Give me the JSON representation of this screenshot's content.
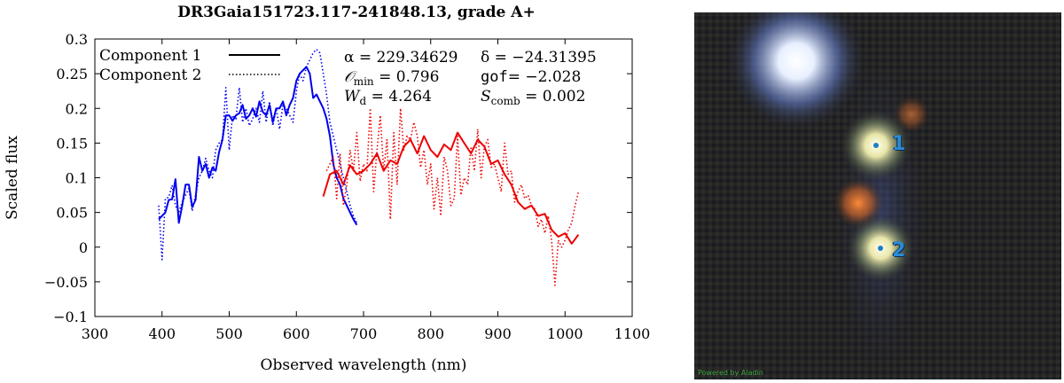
{
  "chart_data": {
    "type": "line",
    "title": "DR3Gaia151723.117-241848.13, grade A+",
    "xlabel": "Observed wavelength (nm)",
    "ylabel": "Scaled flux",
    "xlim": [
      300,
      1100
    ],
    "ylim": [
      -0.1,
      0.3
    ],
    "xticks": [
      "300",
      "400",
      "500",
      "600",
      "700",
      "800",
      "900",
      "1000",
      "1100"
    ],
    "yticks": [
      "−0.1",
      "−0.05",
      "0",
      "0.05",
      "0.1",
      "0.15",
      "0.2",
      "0.25",
      "0.3"
    ],
    "legend": {
      "placement": "top-left",
      "entries": [
        {
          "label": "Component 1",
          "style": "solid"
        },
        {
          "label": "Component 2",
          "style": "dotted"
        }
      ]
    },
    "annotations": [
      {
        "id": "alpha",
        "text": "α = 229.34629"
      },
      {
        "id": "delta",
        "text": "δ = −24.31395"
      },
      {
        "id": "omin",
        "text": "𝒪",
        "sub": "min",
        "rest": " = 0.796"
      },
      {
        "id": "gof",
        "text": "gof",
        "rest": "= −2.028"
      },
      {
        "id": "wd",
        "text": "W",
        "sub": "d",
        "rest": " = 4.264"
      },
      {
        "id": "scomb",
        "text": "S",
        "sub": "comb",
        "rest": " = 0.002"
      }
    ],
    "colors": {
      "bp": "#0000ee",
      "rp": "#ee0000"
    },
    "series": [
      {
        "component": 1,
        "band": "bp",
        "style": "solid",
        "x": [
          395,
          400,
          405,
          410,
          415,
          420,
          425,
          430,
          435,
          440,
          445,
          450,
          455,
          460,
          465,
          470,
          475,
          480,
          485,
          490,
          495,
          500,
          505,
          510,
          515,
          520,
          525,
          530,
          535,
          540,
          545,
          550,
          555,
          560,
          565,
          570,
          575,
          580,
          585,
          590,
          595,
          600,
          605,
          610,
          615,
          620,
          625,
          630,
          635,
          640,
          645,
          650,
          655,
          660,
          665,
          670,
          675,
          680,
          685,
          690
        ],
        "y": [
          0.04,
          0.045,
          0.05,
          0.068,
          0.069,
          0.098,
          0.035,
          0.06,
          0.09,
          0.09,
          0.058,
          0.068,
          0.13,
          0.11,
          0.12,
          0.1,
          0.115,
          0.11,
          0.137,
          0.155,
          0.19,
          0.19,
          0.182,
          0.19,
          0.193,
          0.205,
          0.185,
          0.19,
          0.2,
          0.188,
          0.21,
          0.195,
          0.19,
          0.205,
          0.18,
          0.2,
          0.2,
          0.21,
          0.19,
          0.205,
          0.215,
          0.24,
          0.25,
          0.255,
          0.26,
          0.25,
          0.215,
          0.22,
          0.21,
          0.2,
          0.185,
          0.16,
          0.12,
          0.1,
          0.09,
          0.07,
          0.06,
          0.05,
          0.04,
          0.032
        ]
      },
      {
        "component": 1,
        "band": "rp",
        "style": "solid",
        "x": [
          640,
          650,
          660,
          670,
          680,
          690,
          700,
          710,
          720,
          730,
          740,
          750,
          760,
          770,
          780,
          790,
          800,
          810,
          820,
          830,
          840,
          850,
          860,
          870,
          880,
          890,
          900,
          910,
          920,
          930,
          940,
          950,
          960,
          970,
          980,
          990,
          1000,
          1010,
          1020
        ],
        "y": [
          0.073,
          0.105,
          0.11,
          0.09,
          0.118,
          0.105,
          0.11,
          0.12,
          0.135,
          0.11,
          0.125,
          0.12,
          0.145,
          0.155,
          0.135,
          0.16,
          0.14,
          0.13,
          0.148,
          0.14,
          0.165,
          0.15,
          0.135,
          0.155,
          0.145,
          0.12,
          0.125,
          0.105,
          0.09,
          0.065,
          0.055,
          0.06,
          0.045,
          0.048,
          0.025,
          0.015,
          0.02,
          0.005,
          0.018
        ]
      },
      {
        "component": 2,
        "band": "bp",
        "style": "dotted",
        "x": [
          395,
          400,
          405,
          410,
          415,
          420,
          425,
          430,
          435,
          440,
          445,
          450,
          455,
          460,
          465,
          470,
          475,
          480,
          485,
          490,
          495,
          500,
          505,
          510,
          515,
          520,
          525,
          530,
          535,
          540,
          545,
          550,
          555,
          560,
          565,
          570,
          575,
          580,
          585,
          590,
          595,
          600,
          605,
          610,
          615,
          620,
          625,
          630,
          635,
          640,
          645,
          650,
          655,
          660,
          665,
          670,
          675,
          680,
          685,
          690
        ],
        "y": [
          0.06,
          -0.018,
          0.07,
          0.072,
          0.089,
          0.06,
          0.05,
          0.065,
          0.075,
          0.085,
          0.052,
          0.075,
          0.1,
          0.11,
          0.128,
          0.11,
          0.1,
          0.14,
          0.15,
          0.155,
          0.23,
          0.14,
          0.19,
          0.185,
          0.23,
          0.18,
          0.2,
          0.175,
          0.185,
          0.2,
          0.18,
          0.225,
          0.18,
          0.21,
          0.175,
          0.2,
          0.17,
          0.205,
          0.2,
          0.19,
          0.18,
          0.225,
          0.25,
          0.24,
          0.26,
          0.27,
          0.28,
          0.285,
          0.28,
          0.25,
          0.22,
          0.18,
          0.16,
          0.14,
          0.12,
          0.1,
          0.08,
          0.06,
          0.045,
          0.035
        ]
      },
      {
        "component": 2,
        "band": "rp",
        "style": "dotted",
        "x": [
          645,
          650,
          655,
          660,
          665,
          670,
          675,
          680,
          685,
          690,
          695,
          700,
          705,
          710,
          715,
          720,
          725,
          730,
          735,
          740,
          745,
          750,
          755,
          760,
          765,
          770,
          775,
          780,
          785,
          790,
          795,
          800,
          805,
          810,
          815,
          820,
          825,
          830,
          835,
          840,
          845,
          850,
          855,
          860,
          865,
          870,
          875,
          880,
          885,
          890,
          895,
          900,
          905,
          910,
          915,
          920,
          925,
          930,
          935,
          940,
          945,
          950,
          955,
          960,
          965,
          970,
          975,
          980,
          985,
          990,
          995,
          1000,
          1005,
          1010,
          1015,
          1020
        ],
        "y": [
          0.11,
          0.12,
          0.13,
          0.07,
          0.135,
          0.06,
          0.09,
          0.14,
          0.11,
          0.165,
          0.095,
          0.12,
          0.11,
          0.2,
          0.08,
          0.14,
          0.19,
          0.11,
          0.155,
          0.04,
          0.165,
          0.09,
          0.2,
          0.14,
          0.16,
          0.155,
          0.18,
          0.16,
          0.115,
          0.14,
          0.09,
          0.12,
          0.055,
          0.1,
          0.045,
          0.13,
          0.11,
          0.06,
          0.07,
          0.16,
          0.075,
          0.1,
          0.09,
          0.145,
          0.11,
          0.17,
          0.1,
          0.145,
          0.155,
          0.115,
          0.12,
          0.1,
          0.08,
          0.15,
          0.105,
          0.11,
          0.065,
          0.08,
          0.09,
          0.07,
          0.075,
          0.06,
          0.055,
          0.03,
          0.04,
          0.02,
          0.045,
          0.01,
          -0.055,
          0.01,
          0.0,
          0.01,
          0.025,
          0.035,
          0.06,
          0.08
        ]
      }
    ]
  },
  "sky_image": {
    "markers": [
      {
        "label": "1"
      },
      {
        "label": "2"
      }
    ],
    "credit": "Powered by Aladin"
  }
}
